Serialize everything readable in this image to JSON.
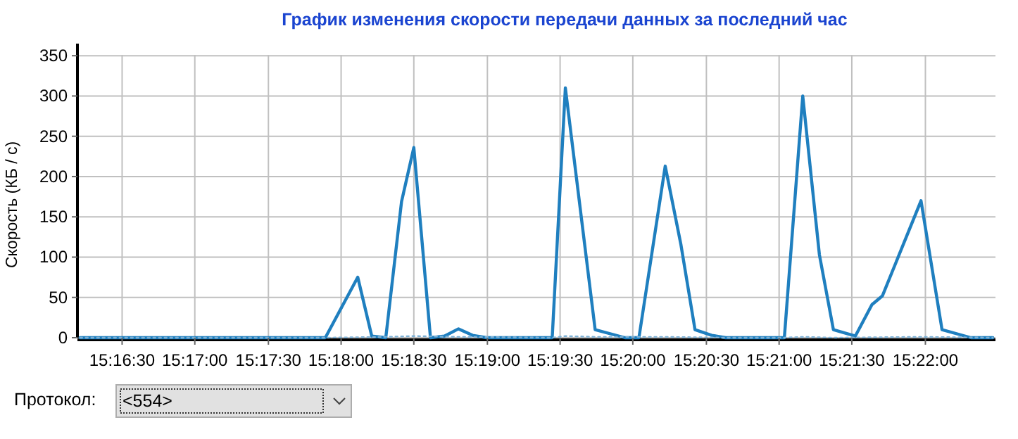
{
  "chart_data": {
    "type": "line",
    "title": "График изменения скорости передачи данных за последний час",
    "ylabel": "Скорость (КБ / с)",
    "xlim": [
      15.2699,
      15.3747
    ],
    "ylim": [
      0,
      365
    ],
    "xticks": [
      {
        "value": 15.275,
        "label": "15:16:30"
      },
      {
        "value": 15.2833,
        "label": "15:17:00"
      },
      {
        "value": 15.2917,
        "label": "15:17:30"
      },
      {
        "value": 15.3,
        "label": "15:18:00"
      },
      {
        "value": 15.3083,
        "label": "15:18:30"
      },
      {
        "value": 15.3167,
        "label": "15:19:00"
      },
      {
        "value": 15.325,
        "label": "15:19:30"
      },
      {
        "value": 15.3333,
        "label": "15:20:00"
      },
      {
        "value": 15.3417,
        "label": "15:20:30"
      },
      {
        "value": 15.35,
        "label": "15:21:00"
      },
      {
        "value": 15.3583,
        "label": "15:21:30"
      },
      {
        "value": 15.3667,
        "label": "15:22:00"
      }
    ],
    "yticks": [
      0,
      50,
      100,
      150,
      200,
      250,
      300,
      350
    ],
    "grid": true,
    "marker": "none",
    "series": [
      {
        "color": "#1f7fbf",
        "line_style": "solid",
        "x": [
          15.2702,
          15.2982,
          15.3019,
          15.3035,
          15.3051,
          15.3069,
          15.3083,
          15.3102,
          15.3118,
          15.3134,
          15.315,
          15.3166,
          15.3241,
          15.3256,
          15.329,
          15.3324,
          15.334,
          15.337,
          15.3388,
          15.3404,
          15.3423,
          15.3439,
          15.3506,
          15.3527,
          15.3546,
          15.3562,
          15.3587,
          15.3606,
          15.3618,
          15.3662,
          15.3686,
          15.3719,
          15.3744
        ],
        "values": [
          0,
          0,
          75,
          2,
          0,
          169,
          236,
          0,
          2,
          11,
          3,
          0,
          0,
          310,
          10,
          0,
          0,
          213,
          115,
          10,
          3,
          0,
          0,
          300,
          103,
          10,
          2,
          41,
          52,
          170,
          10,
          0,
          0
        ]
      },
      {
        "color": "#7fb2d6",
        "line_style": "dotted",
        "x": [
          15.2702,
          15.2982,
          15.3051,
          15.3083,
          15.3134,
          15.3241,
          15.3256,
          15.329,
          15.337,
          15.3439,
          15.3506,
          15.3527,
          15.3562,
          15.3662,
          15.3744
        ],
        "values": [
          0,
          0,
          1,
          2,
          1,
          0,
          2,
          1,
          1,
          0,
          0,
          1,
          0,
          1,
          0
        ]
      }
    ],
    "annotations": [
      "Протокол:",
      "<554>"
    ]
  }
}
